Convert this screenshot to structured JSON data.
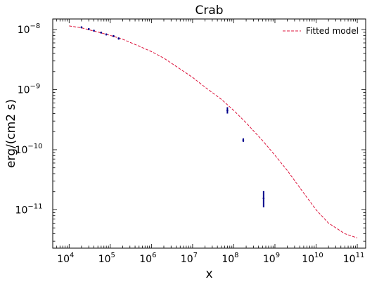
{
  "chart_data": {
    "type": "scatter",
    "title": "Crab",
    "xlabel": "x",
    "ylabel": "erg/(cm2 s)",
    "xscale": "log",
    "yscale": "log",
    "xlim": [
      4000.0,
      160000000000.0
    ],
    "ylim": [
      2.3e-12,
      1.5e-08
    ],
    "grid": false,
    "legend": {
      "placement": "top-right",
      "entries": [
        "Fitted model"
      ]
    },
    "x_ticks": [
      {
        "base": "10",
        "exp": "4",
        "value": 10000.0
      },
      {
        "base": "10",
        "exp": "5",
        "value": 100000.0
      },
      {
        "base": "10",
        "exp": "6",
        "value": 1000000.0
      },
      {
        "base": "10",
        "exp": "7",
        "value": 10000000.0
      },
      {
        "base": "10",
        "exp": "8",
        "value": 100000000.0
      },
      {
        "base": "10",
        "exp": "9",
        "value": 1000000000.0
      },
      {
        "base": "10",
        "exp": "10",
        "value": 10000000000.0
      },
      {
        "base": "10",
        "exp": "11",
        "value": 100000000000.0
      }
    ],
    "y_ticks": [
      {
        "base": "10",
        "exp": "−8",
        "value": 1e-08
      },
      {
        "base": "10",
        "exp": "−9",
        "value": 1e-09
      },
      {
        "base": "10",
        "exp": "−10",
        "value": 1e-10
      },
      {
        "base": "10",
        "exp": "−11",
        "value": 1e-11
      }
    ],
    "series": [
      {
        "name": "Fitted model",
        "kind": "line",
        "style": "dashed",
        "color": "#dc143c",
        "points": [
          [
            10000.0,
            1.15e-08
          ],
          [
            20000.0,
            1.07e-08
          ],
          [
            50000.0,
            9.1e-09
          ],
          [
            100000.0,
            8e-09
          ],
          [
            200000.0,
            6.9e-09
          ],
          [
            500000.0,
            5.3e-09
          ],
          [
            1000000.0,
            4.3e-09
          ],
          [
            2000000.0,
            3.35e-09
          ],
          [
            5000000.0,
            2.2e-09
          ],
          [
            10000000.0,
            1.6e-09
          ],
          [
            20000000.0,
            1.1e-09
          ],
          [
            50000000.0,
            6.9e-10
          ],
          [
            100000000.0,
            4.5e-10
          ],
          [
            200000000.0,
            2.8e-10
          ],
          [
            500000000.0,
            1.42e-10
          ],
          [
            1000000000.0,
            8.1e-11
          ],
          [
            2000000000.0,
            4.5e-11
          ],
          [
            5000000000.0,
            1.9e-11
          ],
          [
            10000000000.0,
            1e-11
          ],
          [
            20000000000.0,
            6e-12
          ],
          [
            50000000000.0,
            4e-12
          ],
          [
            100000000000.0,
            3.4e-12
          ]
        ]
      },
      {
        "kind": "errorbar",
        "color": "#00008b",
        "points": [
          {
            "x": 20000.0,
            "y": 1.09e-08,
            "ylo": 1.05e-08,
            "yhi": 1.13e-08
          },
          {
            "x": 30000.0,
            "y": 1.02e-08,
            "ylo": 9.8e-09,
            "yhi": 1.06e-08
          },
          {
            "x": 40000.0,
            "y": 9.6e-09,
            "ylo": 9.3e-09,
            "yhi": 9.9e-09
          },
          {
            "x": 60000.0,
            "y": 8.9e-09,
            "ylo": 8.6e-09,
            "yhi": 9.2e-09
          },
          {
            "x": 80000.0,
            "y": 8.3e-09,
            "ylo": 8e-09,
            "yhi": 8.6e-09
          },
          {
            "x": 120000.0,
            "y": 7.8e-09,
            "ylo": 7.5e-09,
            "yhi": 8.1e-09
          },
          {
            "x": 160000.0,
            "y": 7.1e-09,
            "ylo": 6.8e-09,
            "yhi": 7.4e-09
          },
          {
            "x": 70000000.0,
            "y": 4.5e-10,
            "ylo": 4e-10,
            "yhi": 5.1e-10
          },
          {
            "x": 170000000.0,
            "y": 1.45e-10,
            "ylo": 1.35e-10,
            "yhi": 1.55e-10
          },
          {
            "x": 530000000.0,
            "y": 1.55e-11,
            "ylo": 1.1e-11,
            "yhi": 2.05e-11
          }
        ]
      }
    ]
  }
}
